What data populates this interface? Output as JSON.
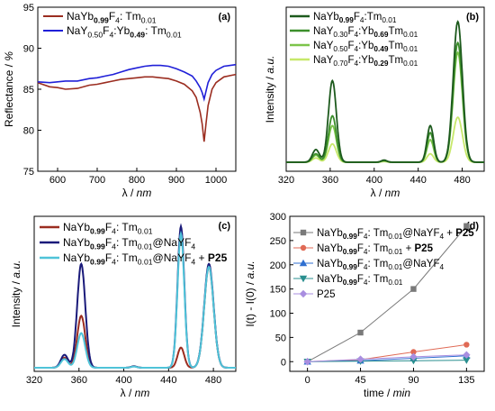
{
  "chart_data": [
    {
      "id": "a",
      "type": "line",
      "panel_label": "(a)",
      "xlabel": "λ / nm",
      "ylabel": "Reflectance / %",
      "xlim": [
        550,
        1050
      ],
      "ylim": [
        75,
        95
      ],
      "x_ticks": [
        "600",
        "700",
        "800",
        "900",
        "1000"
      ],
      "x_tick_values": [
        600,
        700,
        800,
        900,
        1000
      ],
      "y_ticks": [
        "75",
        "80",
        "85",
        "90",
        "95"
      ],
      "y_tick_values": [
        75,
        80,
        85,
        90,
        95
      ],
      "grid": false,
      "legend_position": "top-left",
      "legend": [
        {
          "parts": [
            {
              "t": "NaYb"
            },
            {
              "t": "0.99",
              "sub": true,
              "bold": true
            },
            {
              "t": "F"
            },
            {
              "t": "4",
              "sub": true
            },
            {
              "t": ": Tm"
            },
            {
              "t": "0.01",
              "sub": true
            }
          ],
          "color": "#9b2d20"
        },
        {
          "parts": [
            {
              "t": "NaY"
            },
            {
              "t": "0.50",
              "sub": true
            },
            {
              "t": "F"
            },
            {
              "t": "4",
              "sub": true
            },
            {
              "t": ":Yb"
            },
            {
              "t": "0.49",
              "sub": true,
              "bold": true
            },
            {
              "t": ": Tm"
            },
            {
              "t": "0.01",
              "sub": true
            }
          ],
          "color": "#2020d8"
        }
      ],
      "series": [
        {
          "color": "#9b2d20",
          "x": [
            550,
            580,
            600,
            620,
            650,
            680,
            700,
            720,
            740,
            760,
            780,
            800,
            820,
            840,
            860,
            880,
            900,
            920,
            940,
            950,
            960,
            965,
            970,
            975,
            980,
            990,
            1000,
            1020,
            1050
          ],
          "y": [
            85.8,
            85.3,
            85.2,
            85.0,
            85.1,
            85.5,
            85.6,
            85.8,
            86.0,
            86.2,
            86.3,
            86.4,
            86.5,
            86.5,
            86.4,
            86.3,
            86.0,
            85.6,
            84.8,
            84.0,
            82.2,
            80.8,
            78.6,
            80.9,
            83.0,
            85.0,
            85.8,
            86.5,
            86.8
          ]
        },
        {
          "color": "#2020d8",
          "x": [
            550,
            580,
            600,
            620,
            650,
            680,
            700,
            720,
            740,
            760,
            780,
            800,
            820,
            840,
            860,
            880,
            900,
            920,
            940,
            950,
            960,
            965,
            970,
            975,
            980,
            990,
            1000,
            1020,
            1050
          ],
          "y": [
            85.9,
            85.8,
            85.9,
            86.0,
            86.0,
            86.3,
            86.4,
            86.6,
            86.8,
            87.1,
            87.4,
            87.6,
            87.8,
            87.9,
            87.9,
            87.8,
            87.5,
            87.1,
            86.6,
            86.0,
            85.2,
            84.6,
            83.8,
            84.8,
            85.8,
            86.8,
            87.3,
            87.8,
            88.0
          ]
        }
      ]
    },
    {
      "id": "b",
      "type": "line",
      "panel_label": "(b)",
      "xlabel": "λ / nm",
      "ylabel": "Intensity / a.u.",
      "xlim": [
        320,
        500
      ],
      "x_ticks": [
        "320",
        "360",
        "400",
        "440",
        "480"
      ],
      "x_tick_values": [
        320,
        360,
        400,
        440,
        480
      ],
      "y_ticks": [],
      "grid": false,
      "legend_position": "top-left",
      "legend": [
        {
          "parts": [
            {
              "t": "NaYb"
            },
            {
              "t": "0.99",
              "sub": true,
              "bold": true
            },
            {
              "t": "F"
            },
            {
              "t": "4",
              "sub": true
            },
            {
              "t": ":Tm"
            },
            {
              "t": "0.01",
              "sub": true
            }
          ],
          "color": "#1d5a1d"
        },
        {
          "parts": [
            {
              "t": "NaY"
            },
            {
              "t": "0.30",
              "sub": true
            },
            {
              "t": "F"
            },
            {
              "t": "4",
              "sub": true
            },
            {
              "t": ":Yb"
            },
            {
              "t": "0.69",
              "sub": true,
              "bold": true
            },
            {
              "t": "Tm"
            },
            {
              "t": "0.01",
              "sub": true
            }
          ],
          "color": "#3c8f2b"
        },
        {
          "parts": [
            {
              "t": "NaY"
            },
            {
              "t": "0.50",
              "sub": true
            },
            {
              "t": "F"
            },
            {
              "t": "4",
              "sub": true
            },
            {
              "t": ":Yb"
            },
            {
              "t": "0.49",
              "sub": true,
              "bold": true
            },
            {
              "t": "Tm"
            },
            {
              "t": "0.01",
              "sub": true
            }
          ],
          "color": "#7cc44a"
        },
        {
          "parts": [
            {
              "t": "NaY"
            },
            {
              "t": "0.70",
              "sub": true
            },
            {
              "t": "F"
            },
            {
              "t": "4",
              "sub": true
            },
            {
              "t": ":Yb"
            },
            {
              "t": "0.29",
              "sub": true,
              "bold": true
            },
            {
              "t": "Tm"
            },
            {
              "t": "0.01",
              "sub": true
            }
          ],
          "color": "#c7e86a"
        }
      ],
      "peak_centers": [
        347,
        362,
        409,
        451,
        476
      ],
      "peak_widths": [
        3.2,
        3.6,
        2.6,
        3.0,
        4.2
      ],
      "series": [
        {
          "color": "#1d5a1d",
          "peaks": [
            0.09,
            0.58,
            0.015,
            0.26,
            1.0
          ]
        },
        {
          "color": "#3c8f2b",
          "peaks": [
            0.06,
            0.33,
            0.012,
            0.21,
            0.85
          ]
        },
        {
          "color": "#7cc44a",
          "peaks": [
            0.05,
            0.26,
            0.01,
            0.16,
            0.78
          ]
        },
        {
          "color": "#c7e86a",
          "peaks": [
            0.03,
            0.13,
            0.005,
            0.06,
            0.32
          ]
        }
      ]
    },
    {
      "id": "c",
      "type": "line",
      "panel_label": "(c)",
      "xlabel": "λ / nm",
      "ylabel": "Intensity / a.u.",
      "xlim": [
        320,
        500
      ],
      "x_ticks": [
        "320",
        "360",
        "400",
        "440",
        "480"
      ],
      "x_tick_values": [
        320,
        360,
        400,
        440,
        480
      ],
      "y_ticks": [],
      "grid": false,
      "legend_position": "top-left",
      "legend": [
        {
          "parts": [
            {
              "t": "NaYb"
            },
            {
              "t": "0.99",
              "sub": true,
              "bold": true
            },
            {
              "t": "F"
            },
            {
              "t": "4",
              "sub": true
            },
            {
              "t": ": Tm"
            },
            {
              "t": "0.01",
              "sub": true
            }
          ],
          "color": "#9b2d20"
        },
        {
          "parts": [
            {
              "t": "NaYb"
            },
            {
              "t": "0.99",
              "sub": true,
              "bold": true
            },
            {
              "t": "F"
            },
            {
              "t": "4",
              "sub": true
            },
            {
              "t": ": Tm"
            },
            {
              "t": "0.01",
              "sub": true
            },
            {
              "t": "@NaYF"
            },
            {
              "t": "4",
              "sub": true
            }
          ],
          "color": "#1a1a7a"
        },
        {
          "parts": [
            {
              "t": "NaYb"
            },
            {
              "t": "0.99",
              "sub": true,
              "bold": true
            },
            {
              "t": "F"
            },
            {
              "t": "4",
              "sub": true
            },
            {
              "t": ": Tm"
            },
            {
              "t": "0.01",
              "sub": true
            },
            {
              "t": "@NaYF"
            },
            {
              "t": "4",
              "sub": true
            },
            {
              "t": " + "
            },
            {
              "t": "P25",
              "bold": true
            }
          ],
          "color": "#4fc3d8"
        }
      ],
      "peak_centers": [
        347,
        362,
        409,
        451,
        476
      ],
      "peak_widths": [
        3.2,
        3.6,
        2.6,
        3.0,
        4.2
      ],
      "series": [
        {
          "color": "#9b2d20",
          "peaks": [
            0.07,
            0.36,
            0.01,
            0.14,
            0.7
          ]
        },
        {
          "color": "#1a1a7a",
          "peaks": [
            0.09,
            0.72,
            0.01,
            0.98,
            0.72
          ]
        },
        {
          "color": "#4fc3d8",
          "peaks": [
            0.06,
            0.24,
            0.008,
            0.93,
            0.7
          ]
        }
      ]
    },
    {
      "id": "d",
      "type": "line",
      "panel_label": "(d)",
      "xlabel": "time / min",
      "ylabel": "I(t) - I(0) / a.u.",
      "xlim": [
        -15,
        150
      ],
      "ylim": [
        -20,
        300
      ],
      "categories": [
        0,
        45,
        90,
        135
      ],
      "x_ticks": [
        "0",
        "45",
        "90",
        "135"
      ],
      "x_tick_values": [
        0,
        45,
        90,
        135
      ],
      "y_ticks": [
        "0",
        "50",
        "100",
        "150",
        "200",
        "250",
        "300"
      ],
      "y_tick_values": [
        0,
        50,
        100,
        150,
        200,
        250,
        300
      ],
      "grid": false,
      "legend_position": "top-left",
      "legend": [
        {
          "parts": [
            {
              "t": "NaYb"
            },
            {
              "t": "0.99",
              "sub": true,
              "bold": true
            },
            {
              "t": "F"
            },
            {
              "t": "4",
              "sub": true
            },
            {
              "t": ": Tm"
            },
            {
              "t": "0.01",
              "sub": true
            },
            {
              "t": "@NaYF"
            },
            {
              "t": "4",
              "sub": true
            },
            {
              "t": " + "
            },
            {
              "t": "P25",
              "bold": true
            }
          ],
          "color": "#7a7a7a",
          "marker": "square"
        },
        {
          "parts": [
            {
              "t": "NaYb"
            },
            {
              "t": "0.99",
              "sub": true,
              "bold": true
            },
            {
              "t": "F"
            },
            {
              "t": "4",
              "sub": true
            },
            {
              "t": ": Tm"
            },
            {
              "t": "0.01",
              "sub": true
            },
            {
              "t": " + "
            },
            {
              "t": "P25",
              "bold": true
            }
          ],
          "color": "#e06a55",
          "marker": "circle"
        },
        {
          "parts": [
            {
              "t": "NaYb"
            },
            {
              "t": "0.99",
              "sub": true,
              "bold": true
            },
            {
              "t": "F"
            },
            {
              "t": "4",
              "sub": true
            },
            {
              "t": ": Tm"
            },
            {
              "t": "0.01",
              "sub": true
            },
            {
              "t": "@NaYF"
            },
            {
              "t": "4",
              "sub": true
            }
          ],
          "color": "#2f6fd0",
          "marker": "triangle"
        },
        {
          "parts": [
            {
              "t": "NaYb"
            },
            {
              "t": "0.99",
              "sub": true,
              "bold": true
            },
            {
              "t": "F"
            },
            {
              "t": "4",
              "sub": true
            },
            {
              "t": ": Tm"
            },
            {
              "t": "0.01",
              "sub": true
            }
          ],
          "color": "#2a8f8f",
          "marker": "triangle-down"
        },
        {
          "parts": [
            {
              "t": "P25"
            }
          ],
          "color": "#a98ee0",
          "marker": "diamond"
        }
      ],
      "series": [
        {
          "color": "#7a7a7a",
          "marker": "square",
          "values": [
            0,
            60,
            150,
            280
          ]
        },
        {
          "color": "#e06a55",
          "marker": "circle",
          "values": [
            0,
            4,
            20,
            35
          ]
        },
        {
          "color": "#2f6fd0",
          "marker": "triangle",
          "values": [
            0,
            2,
            7,
            12
          ]
        },
        {
          "color": "#2a8f8f",
          "marker": "triangle-down",
          "values": [
            0,
            1,
            2,
            3
          ]
        },
        {
          "color": "#a98ee0",
          "marker": "diamond",
          "values": [
            0,
            5,
            10,
            14
          ]
        }
      ]
    }
  ]
}
